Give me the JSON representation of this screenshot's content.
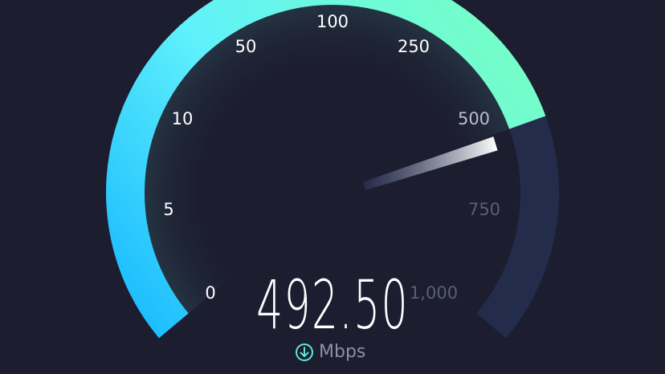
{
  "gauge": {
    "value": "492.50",
    "unit": "Mbps",
    "unit_icon": "download-arrow-circle-icon",
    "progress_fraction": 0.77,
    "ticks": [
      {
        "label": "0",
        "active": true
      },
      {
        "label": "5",
        "active": true
      },
      {
        "label": "10",
        "active": true
      },
      {
        "label": "50",
        "active": true
      },
      {
        "label": "100",
        "active": true
      },
      {
        "label": "250",
        "active": true
      },
      {
        "label": "500",
        "active": true
      },
      {
        "label": "750",
        "active": false
      },
      {
        "label": "1,000",
        "active": false
      }
    ],
    "colors": {
      "background": "#1c1d2f",
      "track": "#232d4b",
      "fill_start": "#12b4ff",
      "fill_mid": "#5ff1fb",
      "fill_end": "#78ffbe",
      "unit_icon": "#5ee6d8"
    }
  }
}
